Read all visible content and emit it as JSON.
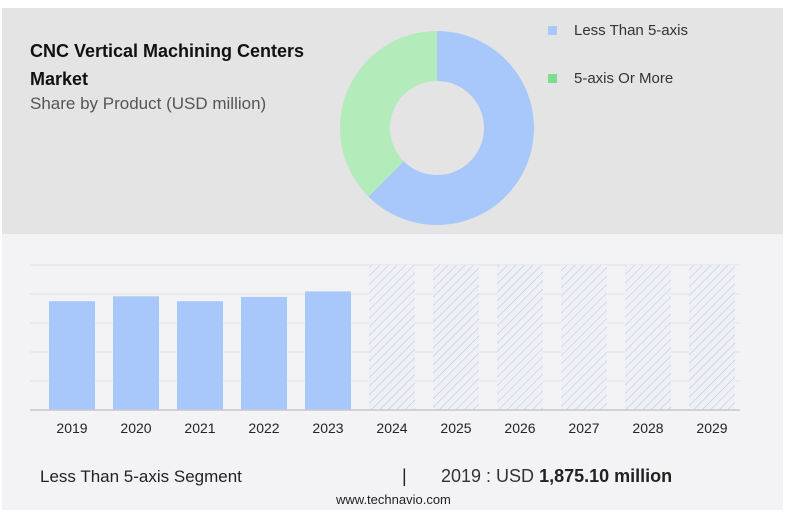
{
  "header": {
    "title": "CNC Vertical Machining Centers Market",
    "subtitle": "Share by Product (USD million)"
  },
  "chart_data": [
    {
      "type": "pie",
      "variant": "donut",
      "categories": [
        "Less Than 5-axis",
        "5-axis Or More"
      ],
      "values": [
        62.5,
        37.5
      ],
      "colors": [
        "#a8c8fb",
        "#b3ecba"
      ],
      "legend_colors": [
        "#a8c8fb",
        "#7ddc8e"
      ],
      "legend_position": "right"
    },
    {
      "type": "bar",
      "categories": [
        "2019",
        "2020",
        "2021",
        "2022",
        "2023",
        "2024",
        "2025",
        "2026",
        "2027",
        "2028",
        "2029"
      ],
      "values": [
        1875.1,
        1960,
        1875,
        1950,
        2045,
        null,
        null,
        null,
        null,
        null,
        null
      ],
      "forecast": [
        "2024",
        "2025",
        "2026",
        "2027",
        "2028",
        "2029"
      ],
      "ylim": [
        0,
        2500
      ],
      "grid": true,
      "color": "#a8c8fb"
    }
  ],
  "footer": {
    "segment": "Less Than 5-axis Segment",
    "separator": "|",
    "year_label": "2019 : USD",
    "value": "1,875.10 million",
    "url": "www.technavio.com"
  }
}
